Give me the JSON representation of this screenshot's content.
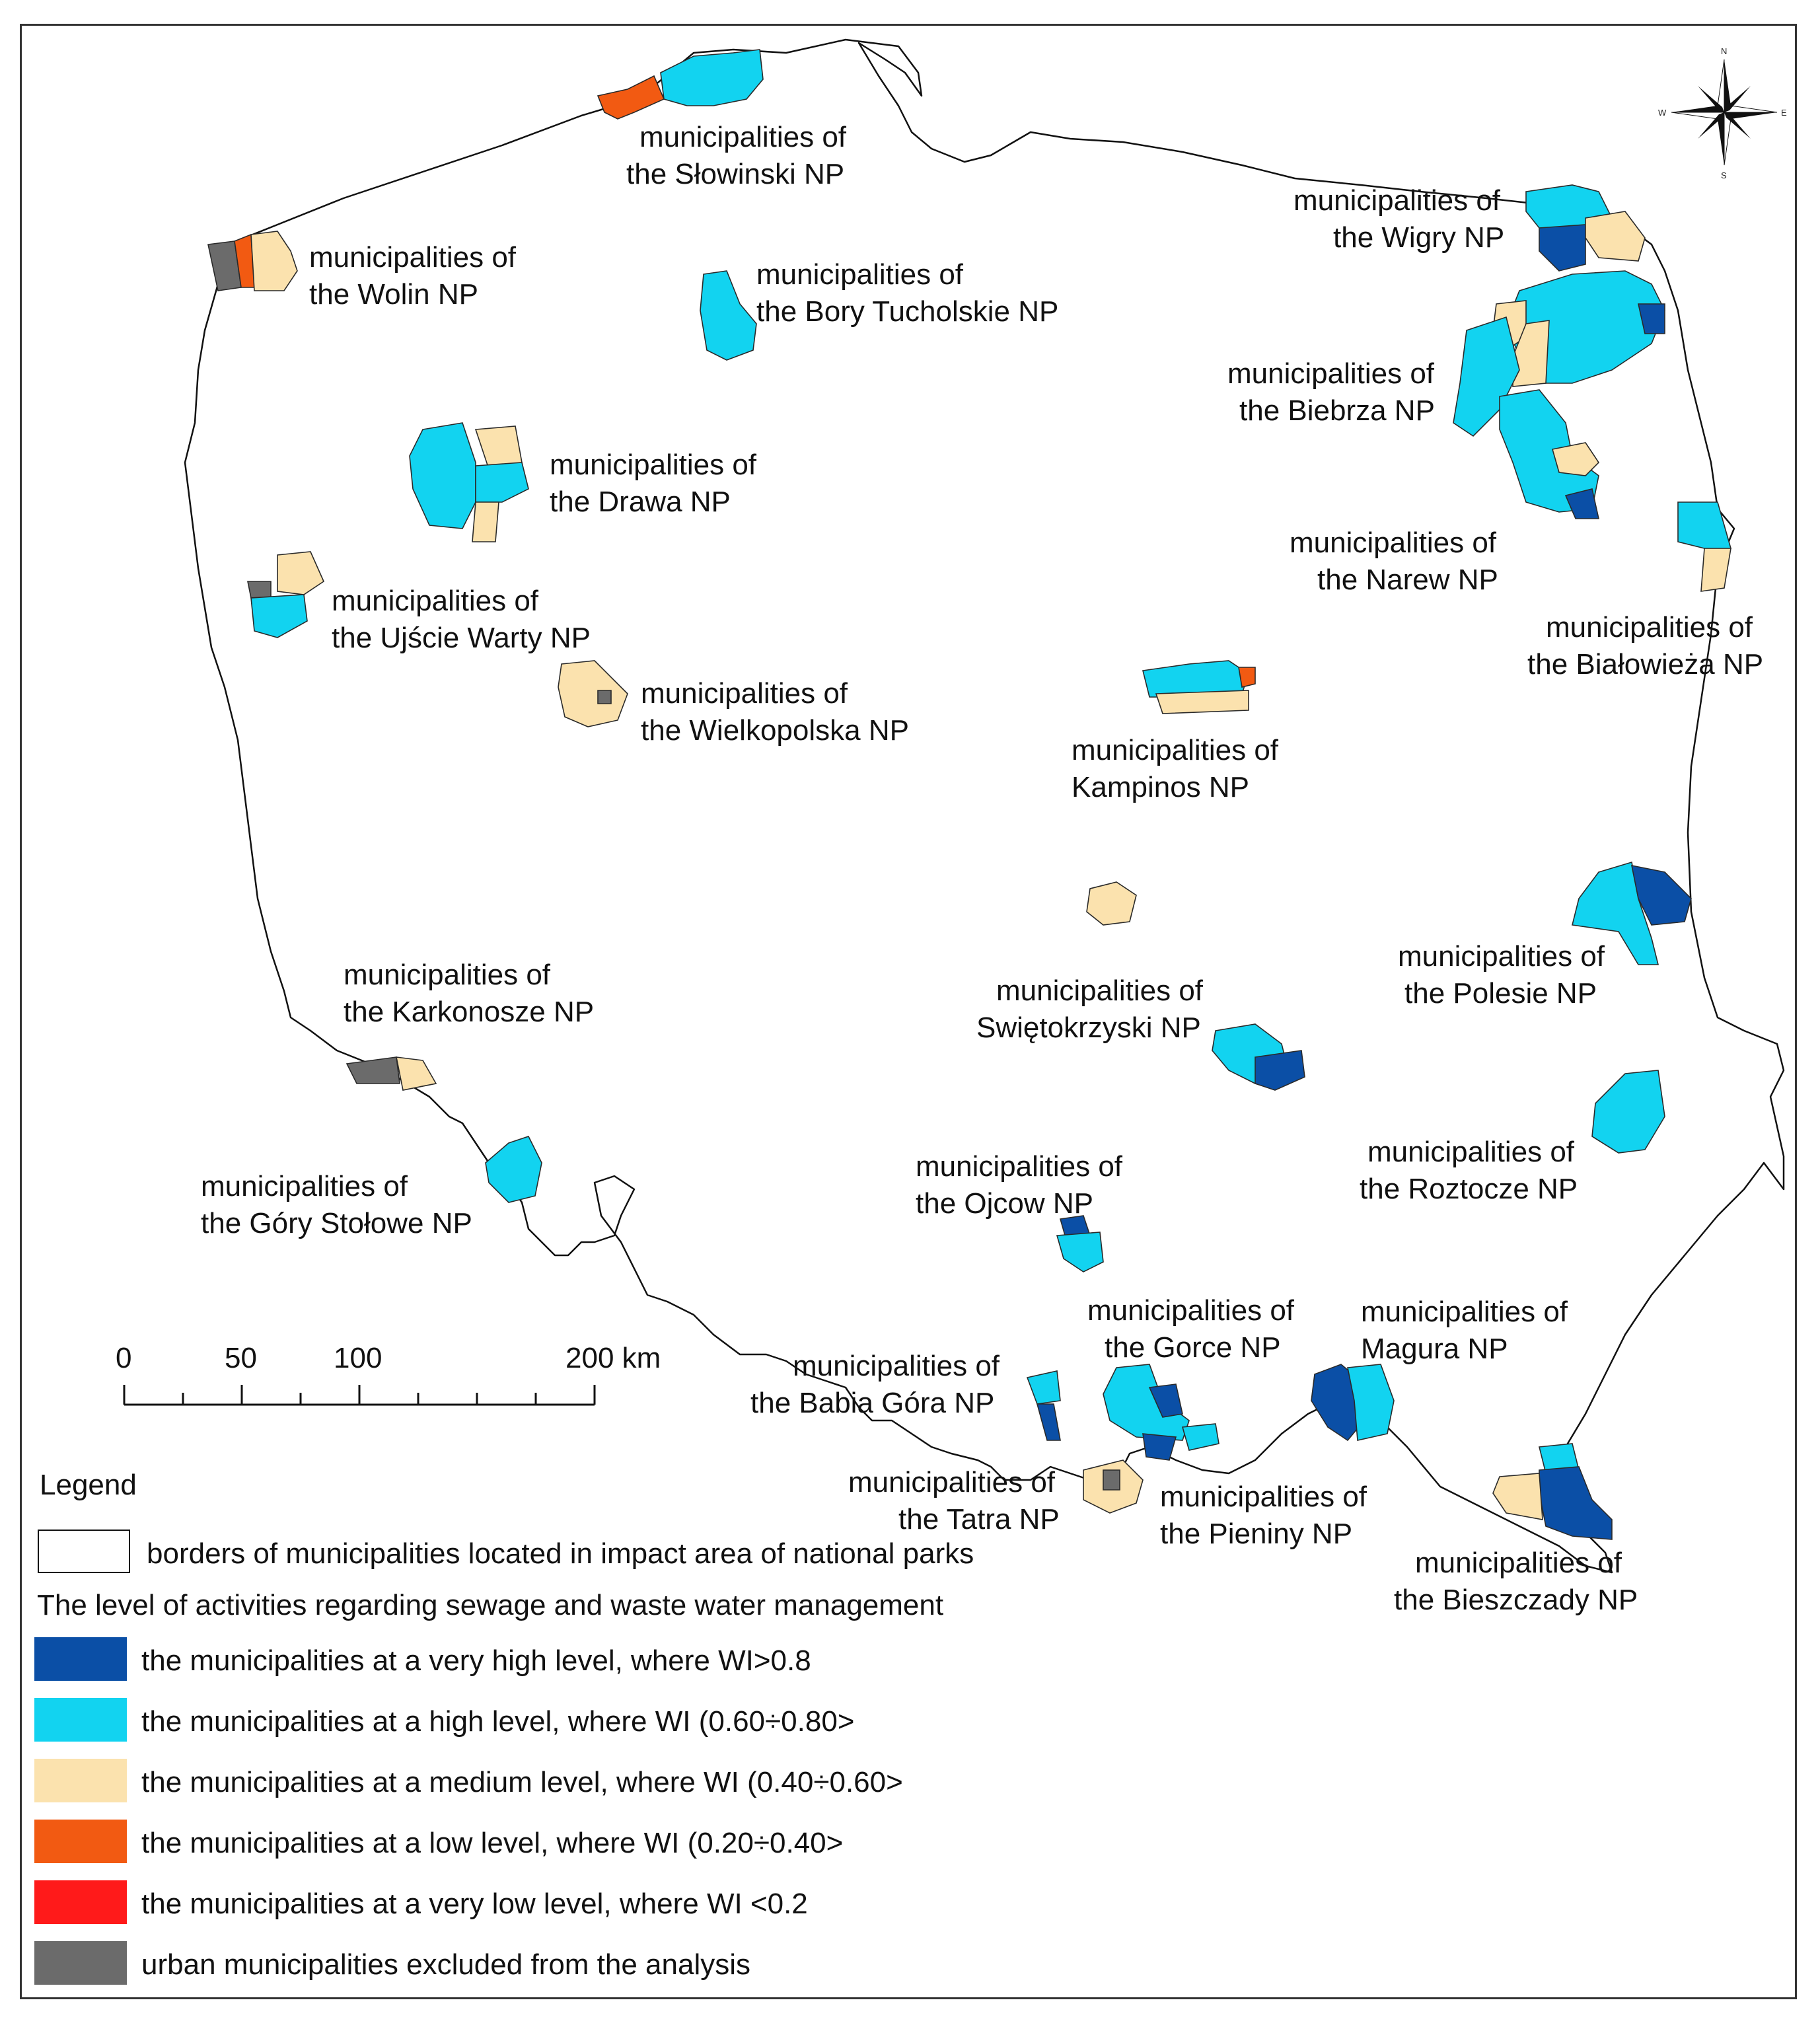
{
  "colors": {
    "very_high": "#0b4fa6",
    "high": "#12d3f0",
    "medium": "#fbe2ae",
    "low": "#f25a12",
    "very_low": "#ff1a1a",
    "urban": "#6b6b6b",
    "border_box": "#ffffff"
  },
  "compass": {
    "n": "N",
    "s": "S",
    "e": "E",
    "w": "W"
  },
  "scale_bar": {
    "ticks": [
      "0",
      "50",
      "100",
      "200 km"
    ]
  },
  "labels": {
    "slowinski": [
      "municipalities of",
      "the Słowinski NP"
    ],
    "wolin": [
      "municipalities of",
      "the Wolin NP"
    ],
    "bory": [
      "municipalities of",
      "the Bory Tucholskie NP"
    ],
    "wigry": [
      "municipalities of",
      "the Wigry NP"
    ],
    "biebrza": [
      "municipalities of",
      "the Biebrza NP"
    ],
    "drawa": [
      "municipalities of",
      "the Drawa NP"
    ],
    "narew": [
      "municipalities of",
      "the Narew NP"
    ],
    "ujscie": [
      "municipalities of",
      "the Ujście Warty NP"
    ],
    "bialowieza": [
      "municipalities of",
      "the Białowieża NP"
    ],
    "wielkopolska": [
      "municipalities of",
      "the Wielkopolska NP"
    ],
    "kampinos": [
      "municipalities of",
      "Kampinos NP"
    ],
    "polesie": [
      "municipalities of",
      "the Polesie NP"
    ],
    "karkonosze": [
      "municipalities of",
      "the Karkonosze NP"
    ],
    "swietokrzyski": [
      "municipalities of",
      "Swiętokrzyski NP"
    ],
    "roztocze": [
      "municipalities of",
      "the Roztocze NP"
    ],
    "gory_stolowe": [
      "municipalities of",
      "the Góry Stołowe NP"
    ],
    "ojcow": [
      "municipalities of",
      "the Ojcow NP"
    ],
    "gorce": [
      "municipalities of",
      "the Gorce NP"
    ],
    "magura": [
      "municipalities of",
      "Magura NP"
    ],
    "babia_gora": [
      "municipalities of",
      "the Babia Góra NP"
    ],
    "tatra": [
      "municipalities of",
      "the Tatra NP"
    ],
    "pieniny": [
      "municipalities of",
      "the Pieniny NP"
    ],
    "bieszczady": [
      "municipalities of",
      "the Bieszczady NP"
    ]
  },
  "legend": {
    "title": "Legend",
    "border_item": "borders of municipalities located in impact area of national parks",
    "subtitle": "The level of activities regarding sewage and waste water management",
    "items": [
      {
        "key": "very_high",
        "label": "the municipalities at a very high level, where WI>0.8"
      },
      {
        "key": "high",
        "label": "the municipalities at a high level, where WI (0.60÷0.80>"
      },
      {
        "key": "medium",
        "label": "the municipalities at a medium level, where WI (0.40÷0.60>"
      },
      {
        "key": "low",
        "label": "the municipalities at a low level, where WI (0.20÷0.40>"
      },
      {
        "key": "very_low",
        "label": "the municipalities at a very low level, where WI <0.2"
      },
      {
        "key": "urban",
        "label": "urban municipalities excluded from the analysis"
      }
    ]
  }
}
